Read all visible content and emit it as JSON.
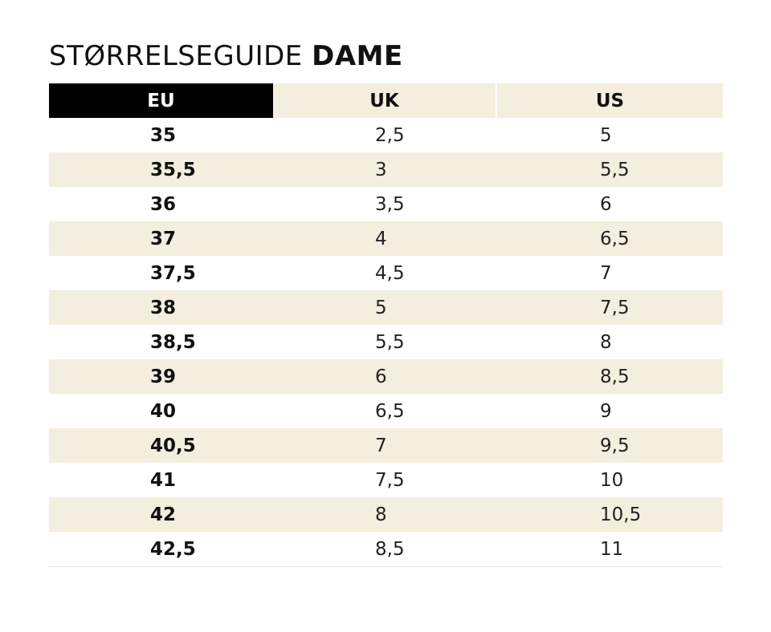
{
  "title": {
    "light": "STØRRELSEGUIDE",
    "bold": "DAME"
  },
  "table": {
    "headers": {
      "eu": "EU",
      "uk": "UK",
      "us": "US"
    },
    "rows": [
      {
        "eu": "35",
        "uk": "2,5",
        "us": "5"
      },
      {
        "eu": "35,5",
        "uk": "3",
        "us": "5,5"
      },
      {
        "eu": "36",
        "uk": "3,5",
        "us": "6"
      },
      {
        "eu": "37",
        "uk": "4",
        "us": "6,5"
      },
      {
        "eu": "37,5",
        "uk": "4,5",
        "us": "7"
      },
      {
        "eu": "38",
        "uk": "5",
        "us": "7,5"
      },
      {
        "eu": "38,5",
        "uk": "5,5",
        "us": "8"
      },
      {
        "eu": "39",
        "uk": "6",
        "us": "8,5"
      },
      {
        "eu": "40",
        "uk": "6,5",
        "us": "9"
      },
      {
        "eu": "40,5",
        "uk": "7",
        "us": "9,5"
      },
      {
        "eu": "41",
        "uk": "7,5",
        "us": "10"
      },
      {
        "eu": "42",
        "uk": "8",
        "us": "10,5"
      },
      {
        "eu": "42,5",
        "uk": "8,5",
        "us": "11"
      }
    ]
  },
  "colors": {
    "header_eu_bg": "#000000",
    "row_shade": "#f4eedf"
  }
}
